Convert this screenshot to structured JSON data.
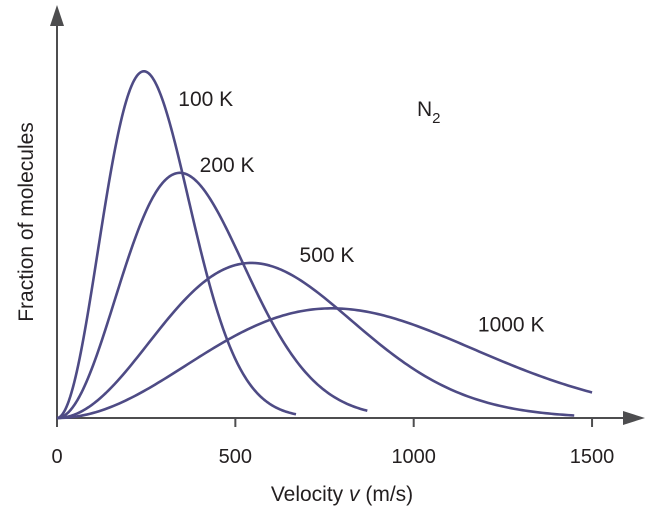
{
  "chart_data": {
    "type": "line",
    "title": "",
    "annotation": {
      "base": "N",
      "subscript": "2"
    },
    "xlabel": {
      "prefix": "Velocity ",
      "variable": "v",
      "suffix": " (m/s)"
    },
    "ylabel": "Fraction of molecules",
    "xlim": [
      0,
      1580
    ],
    "ylim": [
      0,
      1.07
    ],
    "xticks": [
      {
        "value": 0,
        "label": "0"
      },
      {
        "value": 500,
        "label": "500"
      },
      {
        "value": 1000,
        "label": "1000"
      },
      {
        "value": 1500,
        "label": "1500"
      }
    ],
    "grid": false,
    "line_color": "#4e4b85",
    "series": [
      {
        "label": "100 K",
        "temperature_k": 100,
        "x_range": [
          0,
          670
        ],
        "label_at": [
          340,
          0.9
        ]
      },
      {
        "label": "200 K",
        "temperature_k": 200,
        "x_range": [
          0,
          870
        ],
        "label_at": [
          400,
          0.71
        ]
      },
      {
        "label": "500 K",
        "temperature_k": 500,
        "x_range": [
          0,
          1450
        ],
        "label_at": [
          680,
          0.45
        ]
      },
      {
        "label": "1000 K",
        "temperature_k": 1000,
        "x_range": [
          0,
          1500
        ],
        "label_at": [
          1180,
          0.25
        ]
      }
    ]
  }
}
